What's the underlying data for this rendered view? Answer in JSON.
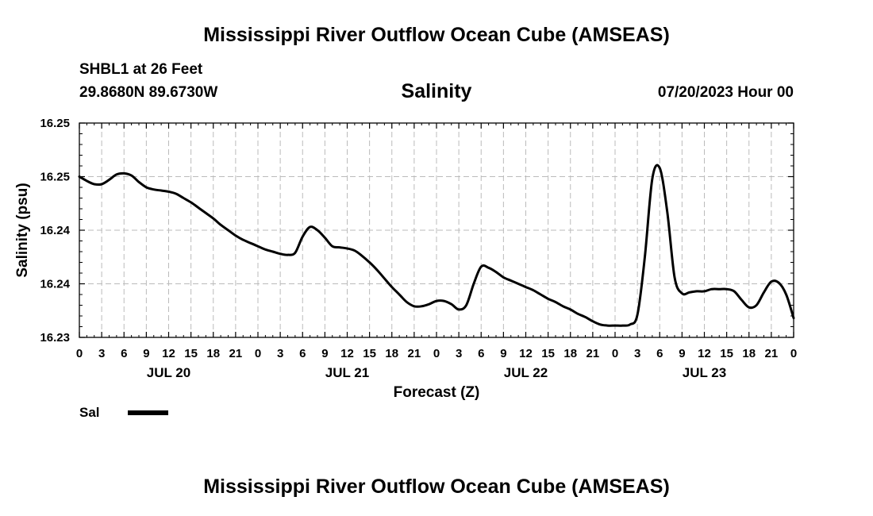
{
  "header": {
    "title": "Mississippi River Outflow Ocean Cube (AMSEAS)",
    "station": "SHBL1 at 26 Feet",
    "coords": "29.8680N  89.6730W",
    "variable": "Salinity",
    "datetime": "07/20/2023 Hour 00"
  },
  "footer": {
    "title": "Mississippi River Outflow Ocean Cube (AMSEAS)"
  },
  "chart_data": {
    "type": "line",
    "title": "Salinity",
    "xlabel": "Forecast (Z)",
    "ylabel": "Salinity (psu)",
    "xlim": [
      0,
      96
    ],
    "ylim": [
      16.23,
      16.25
    ],
    "y_ticks": [
      16.23,
      16.235,
      16.24,
      16.245,
      16.25
    ],
    "y_tick_labels": [
      "16.23",
      "16.24",
      "16.24",
      "16.25",
      "16.25"
    ],
    "x_ticks": [
      0,
      3,
      6,
      9,
      12,
      15,
      18,
      21,
      24,
      27,
      30,
      33,
      36,
      39,
      42,
      45,
      48,
      51,
      54,
      57,
      60,
      63,
      66,
      69,
      72,
      75,
      78,
      81,
      84,
      87,
      90,
      93,
      96
    ],
    "x_tick_labels": [
      "0",
      "3",
      "6",
      "9",
      "12",
      "15",
      "18",
      "21",
      "0",
      "3",
      "6",
      "9",
      "12",
      "15",
      "18",
      "21",
      "0",
      "3",
      "6",
      "9",
      "12",
      "15",
      "18",
      "21",
      "0",
      "3",
      "6",
      "9",
      "12",
      "15",
      "18",
      "21",
      "0"
    ],
    "day_labels": [
      {
        "label": "JUL 20",
        "x": 12
      },
      {
        "label": "JUL 21",
        "x": 36
      },
      {
        "label": "JUL 22",
        "x": 60
      },
      {
        "label": "JUL 23",
        "x": 84
      }
    ],
    "grid": true,
    "series": [
      {
        "name": "Sal",
        "x": [
          0,
          1,
          2,
          3,
          4,
          5,
          6,
          7,
          8,
          9,
          10,
          11,
          12,
          13,
          14,
          15,
          16,
          17,
          18,
          19,
          20,
          21,
          22,
          23,
          24,
          25,
          26,
          27,
          28,
          29,
          30,
          31,
          32,
          33,
          34,
          35,
          36,
          37,
          38,
          39,
          40,
          41,
          42,
          43,
          44,
          45,
          46,
          47,
          48,
          49,
          50,
          51,
          52,
          53,
          54,
          55,
          56,
          57,
          58,
          59,
          60,
          61,
          62,
          63,
          64,
          65,
          66,
          67,
          68,
          69,
          70,
          71,
          72,
          73,
          74,
          75,
          76,
          77,
          78,
          79,
          80,
          81,
          82,
          83,
          84,
          85,
          86,
          87,
          88,
          89,
          90,
          91,
          92,
          93,
          94,
          95,
          96
        ],
        "values": [
          16.245,
          16.2446,
          16.2443,
          16.2443,
          16.2447,
          16.2452,
          16.2453,
          16.2451,
          16.2445,
          16.244,
          16.2438,
          16.2437,
          16.2436,
          16.2434,
          16.243,
          16.2426,
          16.2421,
          16.2416,
          16.2411,
          16.2405,
          16.24,
          16.2395,
          16.2391,
          16.2388,
          16.2385,
          16.2382,
          16.238,
          16.2378,
          16.2377,
          16.2379,
          16.2394,
          16.2403,
          16.24,
          16.2393,
          16.2385,
          16.2384,
          16.2383,
          16.2381,
          16.2376,
          16.237,
          16.2363,
          16.2355,
          16.2347,
          16.234,
          16.2333,
          16.2329,
          16.2329,
          16.2331,
          16.2334,
          16.2334,
          16.2331,
          16.2326,
          16.233,
          16.235,
          16.2366,
          16.2365,
          16.2361,
          16.2356,
          16.2353,
          16.235,
          16.2347,
          16.2344,
          16.234,
          16.2336,
          16.2333,
          16.2329,
          16.2326,
          16.2322,
          16.2319,
          16.2315,
          16.2312,
          16.2311,
          16.2311,
          16.2311,
          16.2312,
          16.2321,
          16.2375,
          16.2448,
          16.2458,
          16.2418,
          16.2356,
          16.2341,
          16.2342,
          16.2343,
          16.2343,
          16.2345,
          16.2345,
          16.2345,
          16.2343,
          16.2335,
          16.2328,
          16.233,
          16.2342,
          16.2352,
          16.2351,
          16.234,
          16.2318
        ]
      }
    ],
    "legend": [
      {
        "label": "Sal",
        "style": "thick black line"
      }
    ],
    "line_color": "#000000",
    "grid_color": "#bbbbbb"
  }
}
